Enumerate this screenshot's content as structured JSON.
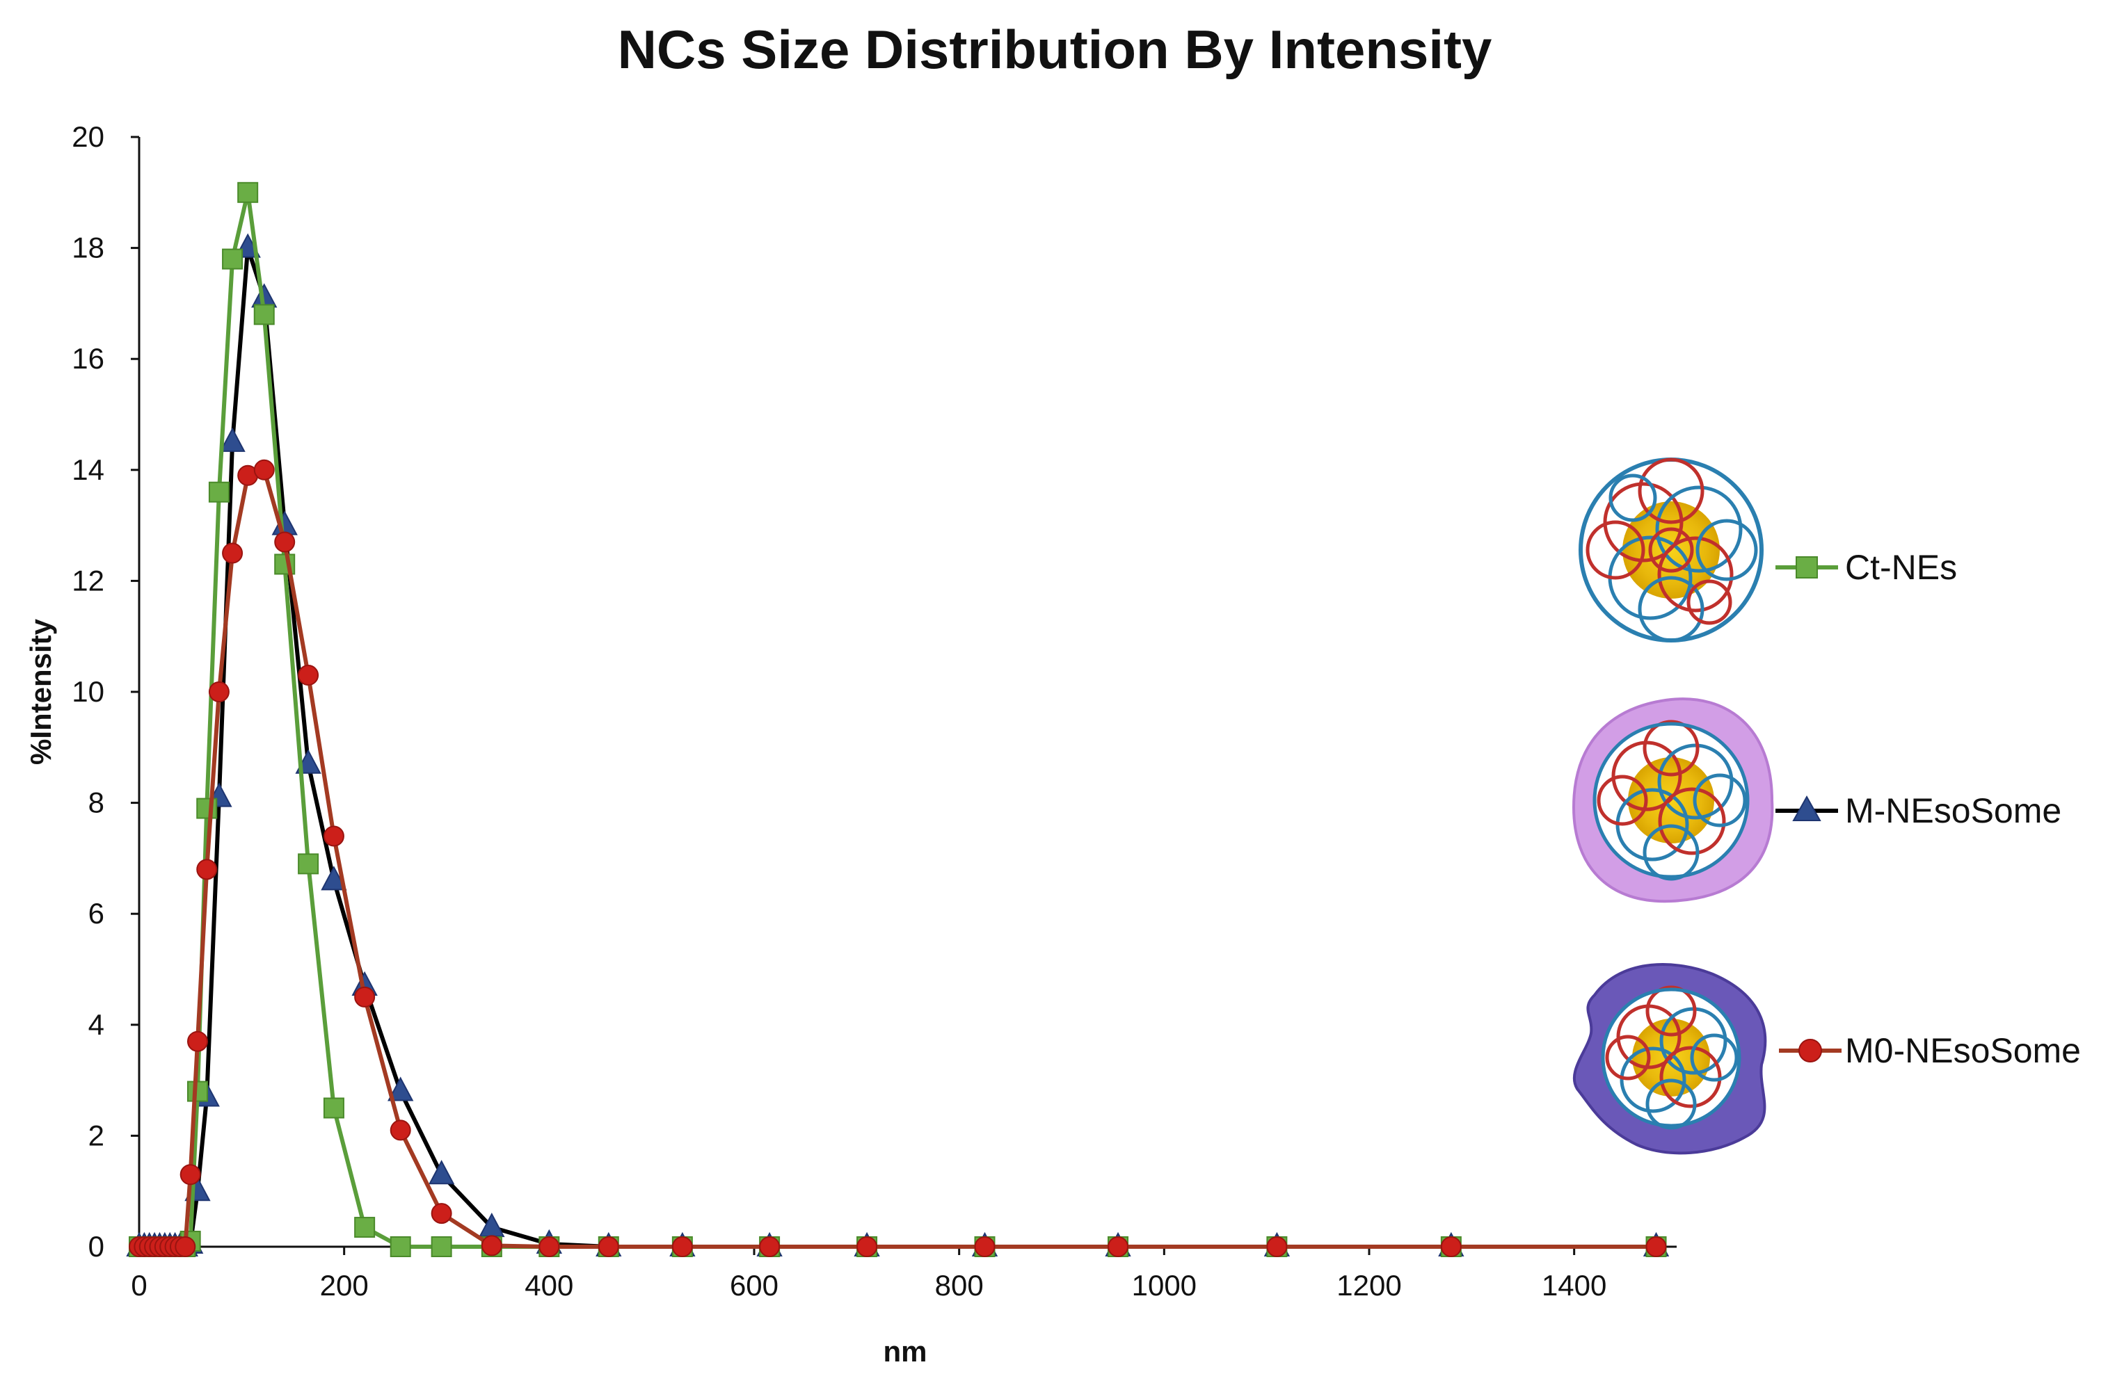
{
  "chart_data": {
    "type": "line",
    "title": "NCs Size Distribution By Intensity",
    "xlabel": "nm",
    "ylabel": "%Intensity",
    "xlim": [
      0,
      1500
    ],
    "ylim": [
      0,
      20
    ],
    "xticks": [
      0,
      200,
      400,
      600,
      800,
      1000,
      1200,
      1400
    ],
    "yticks": [
      0,
      2,
      4,
      6,
      8,
      10,
      12,
      14,
      16,
      18,
      20
    ],
    "grid": false,
    "legend_position": "right",
    "series": [
      {
        "name": "Ct-NEs",
        "color": "#5a9e3a",
        "marker": "square",
        "x": [
          0,
          5,
          10,
          15,
          20,
          25,
          30,
          35,
          40,
          45,
          50,
          57,
          66,
          78,
          91,
          106,
          122,
          142,
          165,
          190,
          220,
          255,
          295,
          344,
          400,
          458,
          530,
          615,
          710,
          825,
          955,
          1110,
          1280,
          1480
        ],
        "y": [
          0,
          0,
          0,
          0,
          0,
          0,
          0,
          0,
          0,
          0,
          0.1,
          2.8,
          7.9,
          13.6,
          17.8,
          19.0,
          16.8,
          12.3,
          6.9,
          2.5,
          0.35,
          0,
          0,
          0,
          0,
          0,
          0,
          0,
          0,
          0,
          0,
          0,
          0,
          0
        ]
      },
      {
        "name": "M-NEsoSome",
        "color": "#2e4d8f",
        "line_color": "#000000",
        "marker": "triangle",
        "x": [
          0,
          5,
          10,
          15,
          20,
          25,
          30,
          35,
          40,
          45,
          50,
          57,
          66,
          78,
          91,
          106,
          122,
          142,
          165,
          190,
          220,
          255,
          295,
          344,
          400,
          458,
          530,
          615,
          710,
          825,
          955,
          1110,
          1280,
          1480
        ],
        "y": [
          0,
          0,
          0,
          0,
          0,
          0,
          0,
          0,
          0,
          0,
          0.05,
          1.0,
          2.7,
          8.1,
          14.5,
          18.0,
          17.1,
          13.0,
          8.7,
          6.6,
          4.7,
          2.8,
          1.3,
          0.35,
          0.05,
          0,
          0,
          0,
          0,
          0,
          0,
          0,
          0,
          0
        ]
      },
      {
        "name": "M0-NEsoSome",
        "color": "#cc1f1a",
        "line_color": "#a33a22",
        "marker": "circle",
        "x": [
          0,
          5,
          10,
          15,
          20,
          25,
          30,
          35,
          40,
          45,
          50,
          57,
          66,
          78,
          91,
          106,
          122,
          142,
          165,
          190,
          220,
          255,
          295,
          344,
          400,
          458,
          530,
          615,
          710,
          825,
          955,
          1110,
          1280,
          1480
        ],
        "y": [
          0,
          0,
          0,
          0,
          0,
          0,
          0,
          0,
          0,
          0,
          1.3,
          3.7,
          6.8,
          10.0,
          12.5,
          13.9,
          14.0,
          12.7,
          10.3,
          7.4,
          4.5,
          2.1,
          0.6,
          0.02,
          0,
          0,
          0,
          0,
          0,
          0,
          0,
          0,
          0,
          0
        ]
      }
    ]
  }
}
